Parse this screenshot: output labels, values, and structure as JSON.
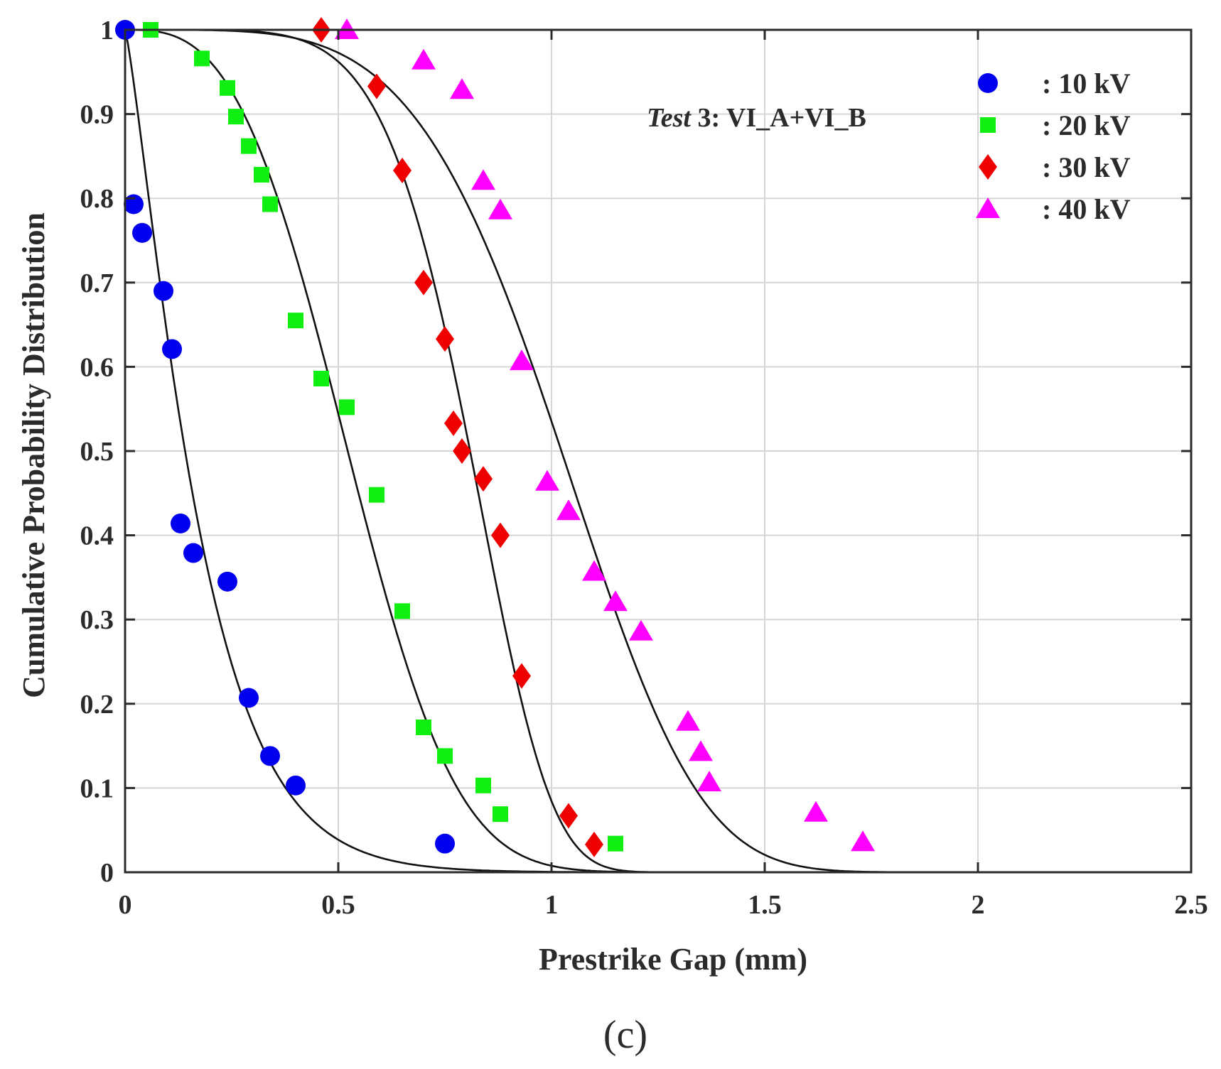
{
  "chart_data": {
    "type": "scatter",
    "xlabel": "Prestrike Gap (mm)",
    "ylabel": "Cumulative Probability Distribution",
    "xlim": [
      0,
      2.5
    ],
    "ylim": [
      0,
      1
    ],
    "xticks": [
      0,
      0.5,
      1,
      1.5,
      2,
      2.5
    ],
    "xtick_labels": [
      "0",
      "0.5",
      "1",
      "1.5",
      "2",
      "2.5"
    ],
    "yticks": [
      0,
      0.1,
      0.2,
      0.3,
      0.4,
      0.5,
      0.6,
      0.7,
      0.8,
      0.9,
      1
    ],
    "ytick_labels": [
      "0",
      "0.1",
      "0.2",
      "0.3",
      "0.4",
      "0.5",
      "0.6",
      "0.7",
      "0.8",
      "0.9",
      "1"
    ],
    "grid": true,
    "legend_position": "top-right",
    "annotation": {
      "italic_part": "Test",
      "rest": " 3: VI_A+VI_B"
    },
    "panel_label": "(c)",
    "series": [
      {
        "name": ": 10 kV",
        "marker": "circle",
        "color": "#0000ee",
        "points": [
          [
            0.0,
            1.0
          ],
          [
            0.02,
            0.793
          ],
          [
            0.04,
            0.759
          ],
          [
            0.09,
            0.69
          ],
          [
            0.11,
            0.621
          ],
          [
            0.13,
            0.414
          ],
          [
            0.16,
            0.379
          ],
          [
            0.24,
            0.345
          ],
          [
            0.29,
            0.207
          ],
          [
            0.34,
            0.138
          ],
          [
            0.4,
            0.103
          ],
          [
            0.75,
            0.034
          ]
        ],
        "fit": {
          "model": "weibull_survival",
          "scale": 0.19,
          "shape": 1.22
        }
      },
      {
        "name": ": 20 kV",
        "marker": "square",
        "color": "#11ee11",
        "points": [
          [
            0.06,
            1.0
          ],
          [
            0.18,
            0.966
          ],
          [
            0.24,
            0.931
          ],
          [
            0.26,
            0.897
          ],
          [
            0.29,
            0.862
          ],
          [
            0.32,
            0.828
          ],
          [
            0.34,
            0.793
          ],
          [
            0.4,
            0.655
          ],
          [
            0.46,
            0.586
          ],
          [
            0.52,
            0.552
          ],
          [
            0.59,
            0.448
          ],
          [
            0.65,
            0.31
          ],
          [
            0.7,
            0.172
          ],
          [
            0.75,
            0.138
          ],
          [
            0.84,
            0.103
          ],
          [
            0.88,
            0.069
          ],
          [
            1.15,
            0.034
          ]
        ],
        "fit": {
          "model": "weibull_survival",
          "scale": 0.59,
          "shape": 3.0
        }
      },
      {
        "name": ": 30 kV",
        "marker": "diamond",
        "color": "#ee0000",
        "points": [
          [
            0.46,
            1.0
          ],
          [
            0.59,
            0.933
          ],
          [
            0.65,
            0.833
          ],
          [
            0.7,
            0.7
          ],
          [
            0.75,
            0.633
          ],
          [
            0.77,
            0.533
          ],
          [
            0.79,
            0.5
          ],
          [
            0.84,
            0.467
          ],
          [
            0.88,
            0.4
          ],
          [
            0.93,
            0.233
          ],
          [
            1.04,
            0.067
          ],
          [
            1.1,
            0.033
          ]
        ],
        "fit": {
          "model": "weibull_survival",
          "scale": 0.86,
          "shape": 6.0
        }
      },
      {
        "name": ": 40 kV",
        "marker": "triangle",
        "color": "#ff00ff",
        "points": [
          [
            0.52,
            1.0
          ],
          [
            0.7,
            0.964
          ],
          [
            0.79,
            0.929
          ],
          [
            0.84,
            0.821
          ],
          [
            0.88,
            0.786
          ],
          [
            0.93,
            0.607
          ],
          [
            0.99,
            0.464
          ],
          [
            1.04,
            0.429
          ],
          [
            1.1,
            0.357
          ],
          [
            1.15,
            0.321
          ],
          [
            1.21,
            0.286
          ],
          [
            1.32,
            0.179
          ],
          [
            1.35,
            0.143
          ],
          [
            1.37,
            0.107
          ],
          [
            1.62,
            0.071
          ],
          [
            1.73,
            0.036
          ]
        ],
        "fit": {
          "model": "weibull_survival",
          "scale": 1.11,
          "shape": 4.5
        }
      }
    ]
  }
}
